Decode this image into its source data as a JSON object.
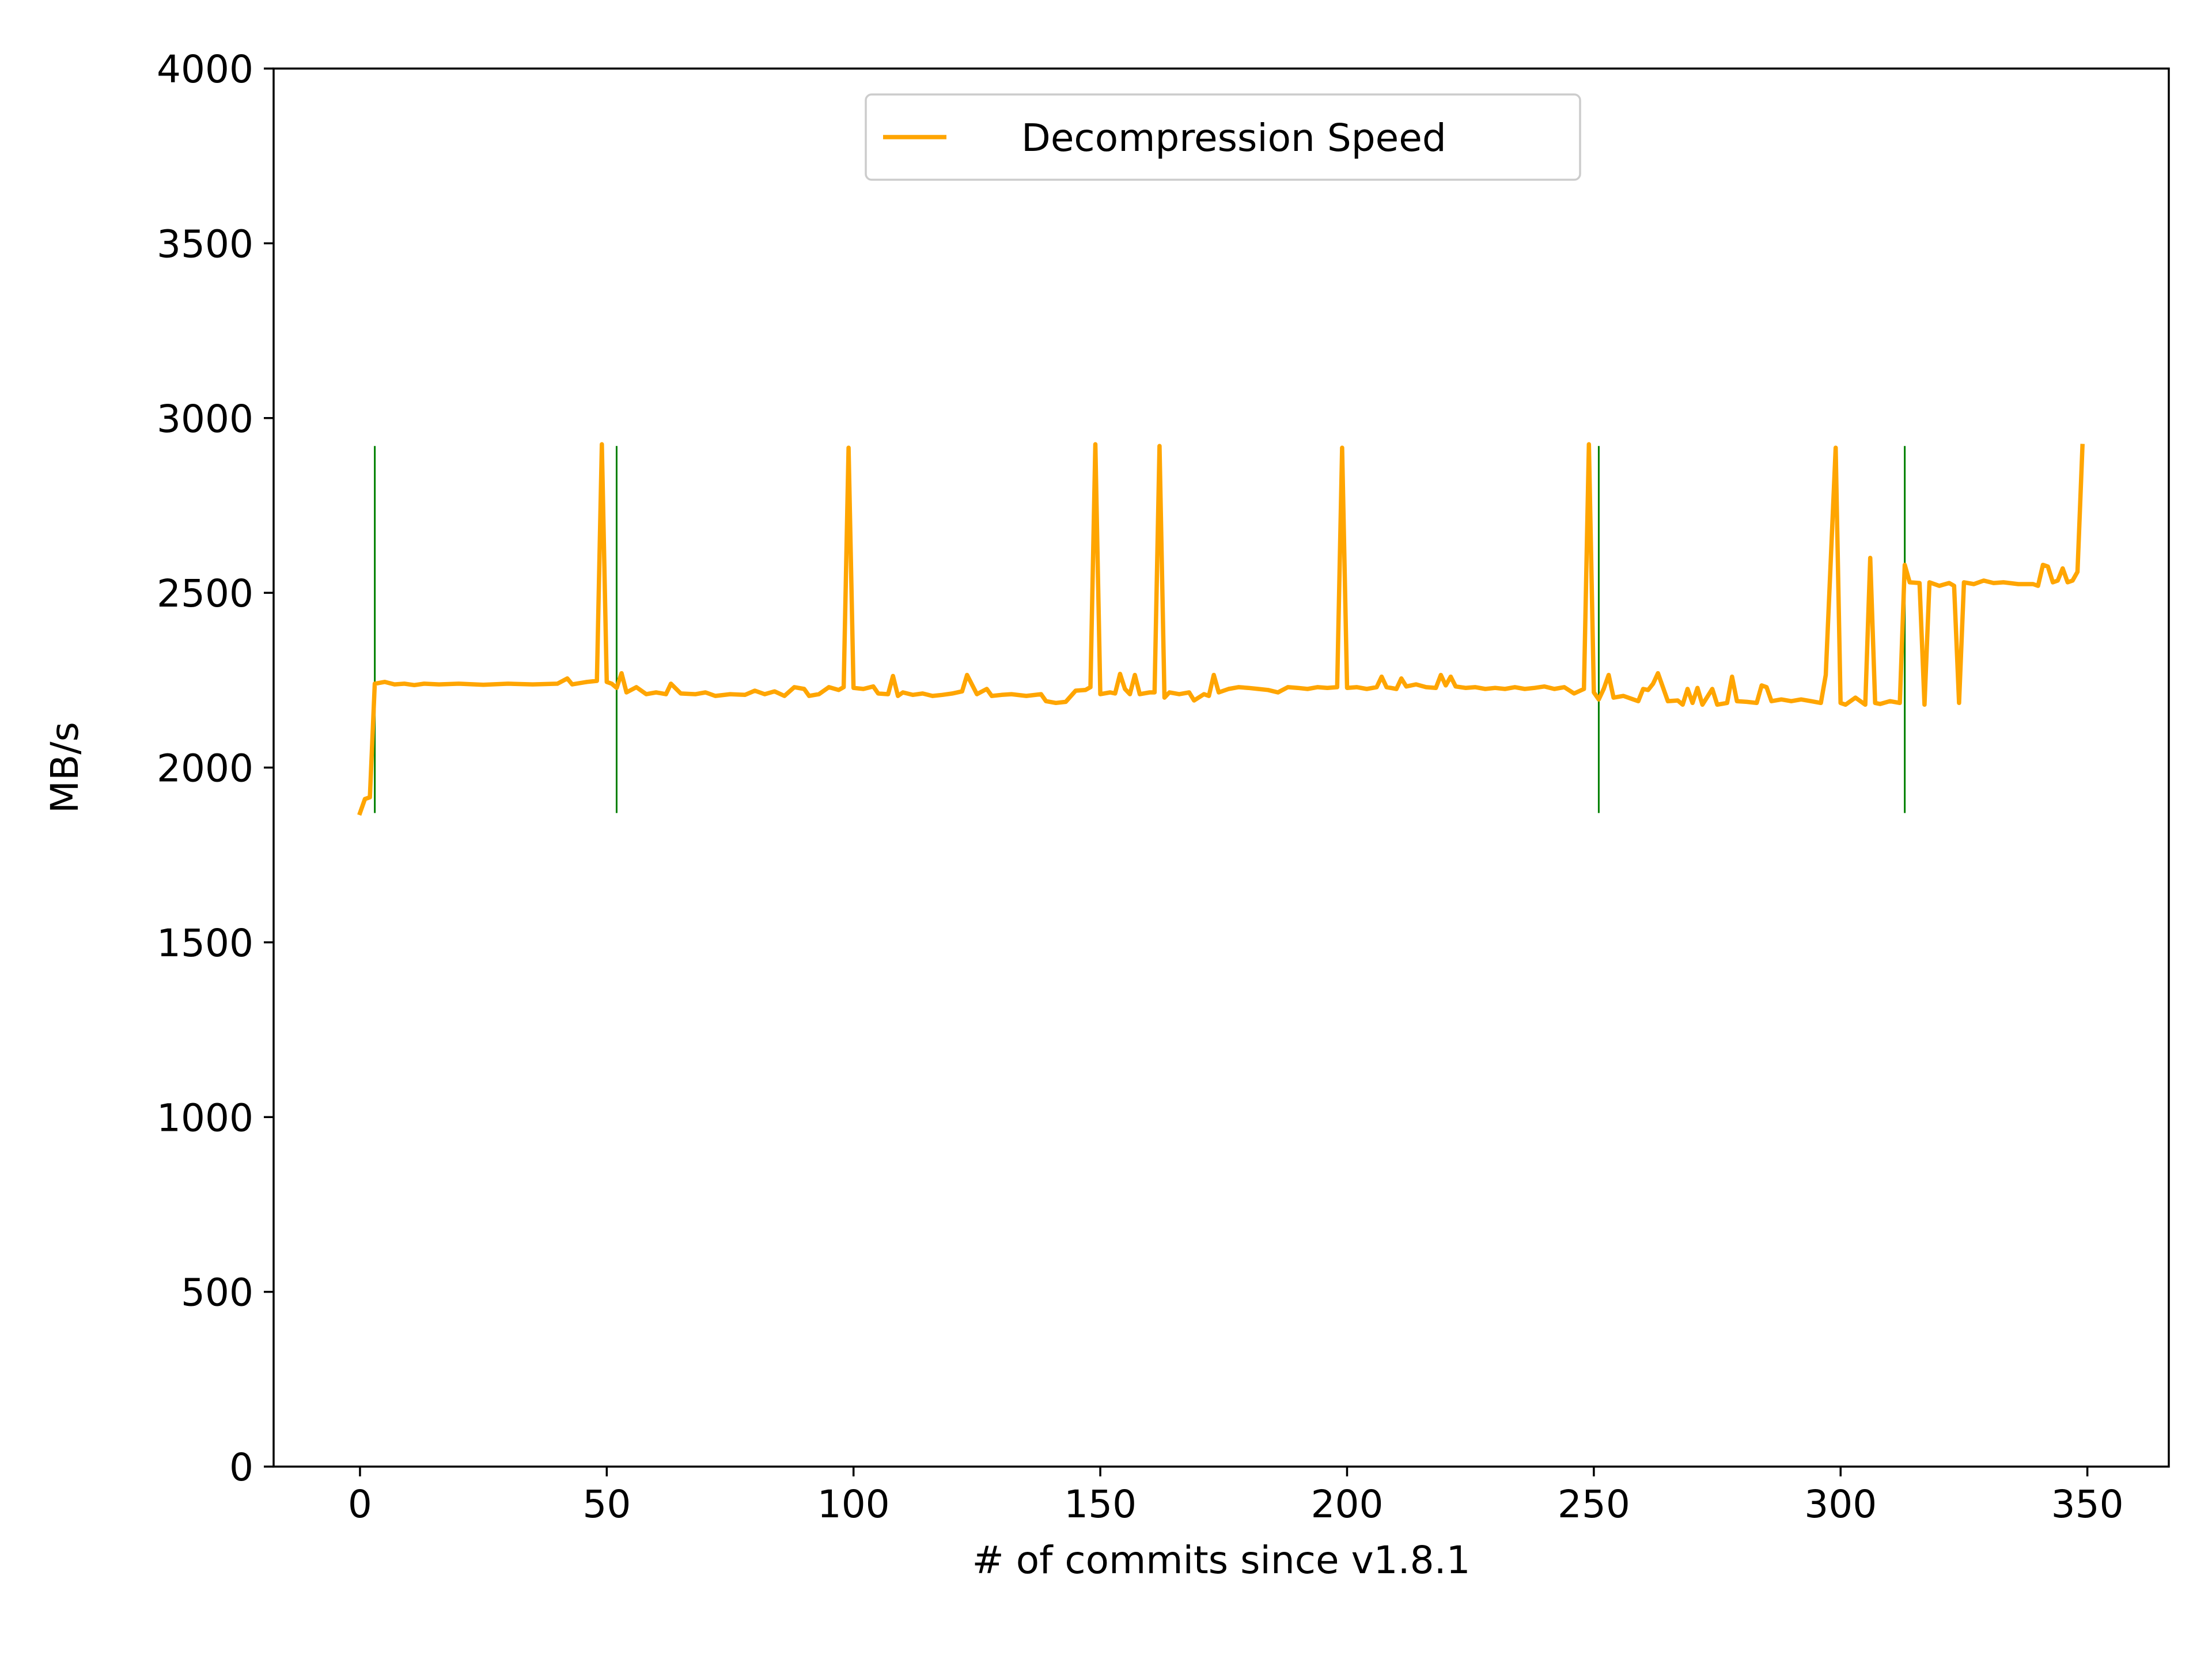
{
  "chart_data": {
    "type": "line",
    "title": "",
    "xlabel": "# of commits since v1.8.1",
    "ylabel": "MB/s",
    "xlim": [
      -17.5,
      366.5
    ],
    "ylim": [
      0,
      4000
    ],
    "xticks": [
      0,
      50,
      100,
      150,
      200,
      250,
      300,
      350
    ],
    "yticks": [
      0,
      500,
      1000,
      1500,
      2000,
      2500,
      3000,
      3500,
      4000
    ],
    "grid": false,
    "legend_position": "upper center",
    "series": [
      {
        "name": "Decompression Speed",
        "color": "#ffa500",
        "points": [
          [
            0,
            1870
          ],
          [
            1,
            1910
          ],
          [
            2,
            1915
          ],
          [
            3,
            2240
          ],
          [
            5,
            2245
          ],
          [
            7,
            2238
          ],
          [
            9,
            2240
          ],
          [
            11,
            2236
          ],
          [
            13,
            2240
          ],
          [
            16,
            2238
          ],
          [
            20,
            2240
          ],
          [
            25,
            2237
          ],
          [
            30,
            2240
          ],
          [
            35,
            2238
          ],
          [
            40,
            2240
          ],
          [
            42,
            2255
          ],
          [
            43,
            2238
          ],
          [
            46,
            2245
          ],
          [
            48,
            2248
          ],
          [
            49,
            2925
          ],
          [
            50,
            2245
          ],
          [
            51,
            2240
          ],
          [
            52,
            2228
          ],
          [
            53,
            2270
          ],
          [
            54,
            2215
          ],
          [
            56,
            2230
          ],
          [
            58,
            2210
          ],
          [
            60,
            2215
          ],
          [
            62,
            2210
          ],
          [
            63,
            2240
          ],
          [
            65,
            2212
          ],
          [
            68,
            2210
          ],
          [
            70,
            2215
          ],
          [
            72,
            2205
          ],
          [
            75,
            2210
          ],
          [
            78,
            2208
          ],
          [
            80,
            2220
          ],
          [
            82,
            2210
          ],
          [
            84,
            2218
          ],
          [
            86,
            2205
          ],
          [
            88,
            2230
          ],
          [
            90,
            2225
          ],
          [
            91,
            2205
          ],
          [
            93,
            2210
          ],
          [
            95,
            2230
          ],
          [
            97,
            2222
          ],
          [
            98,
            2230
          ],
          [
            99,
            2915
          ],
          [
            100,
            2228
          ],
          [
            102,
            2225
          ],
          [
            104,
            2232
          ],
          [
            105,
            2212
          ],
          [
            107,
            2210
          ],
          [
            108,
            2262
          ],
          [
            109,
            2205
          ],
          [
            110,
            2215
          ],
          [
            112,
            2208
          ],
          [
            114,
            2212
          ],
          [
            116,
            2205
          ],
          [
            118,
            2208
          ],
          [
            120,
            2212
          ],
          [
            122,
            2218
          ],
          [
            123,
            2265
          ],
          [
            125,
            2210
          ],
          [
            127,
            2225
          ],
          [
            128,
            2205
          ],
          [
            130,
            2208
          ],
          [
            132,
            2210
          ],
          [
            135,
            2205
          ],
          [
            138,
            2210
          ],
          [
            139,
            2190
          ],
          [
            141,
            2185
          ],
          [
            143,
            2188
          ],
          [
            145,
            2220
          ],
          [
            147,
            2222
          ],
          [
            148,
            2230
          ],
          [
            149,
            2925
          ],
          [
            150,
            2210
          ],
          [
            152,
            2215
          ],
          [
            153,
            2212
          ],
          [
            154,
            2268
          ],
          [
            155,
            2225
          ],
          [
            156,
            2210
          ],
          [
            157,
            2265
          ],
          [
            158,
            2210
          ],
          [
            160,
            2215
          ],
          [
            161,
            2215
          ],
          [
            162,
            2920
          ],
          [
            163,
            2200
          ],
          [
            164,
            2215
          ],
          [
            166,
            2210
          ],
          [
            168,
            2215
          ],
          [
            169,
            2192
          ],
          [
            171,
            2210
          ],
          [
            172,
            2205
          ],
          [
            173,
            2265
          ],
          [
            174,
            2215
          ],
          [
            176,
            2225
          ],
          [
            178,
            2230
          ],
          [
            180,
            2228
          ],
          [
            182,
            2225
          ],
          [
            184,
            2222
          ],
          [
            186,
            2215
          ],
          [
            188,
            2230
          ],
          [
            190,
            2228
          ],
          [
            192,
            2225
          ],
          [
            194,
            2230
          ],
          [
            196,
            2228
          ],
          [
            198,
            2230
          ],
          [
            199,
            2915
          ],
          [
            200,
            2228
          ],
          [
            202,
            2230
          ],
          [
            204,
            2225
          ],
          [
            206,
            2230
          ],
          [
            207,
            2260
          ],
          [
            208,
            2230
          ],
          [
            210,
            2225
          ],
          [
            211,
            2255
          ],
          [
            212,
            2232
          ],
          [
            214,
            2238
          ],
          [
            216,
            2230
          ],
          [
            218,
            2228
          ],
          [
            219,
            2265
          ],
          [
            220,
            2235
          ],
          [
            221,
            2260
          ],
          [
            222,
            2232
          ],
          [
            224,
            2228
          ],
          [
            226,
            2230
          ],
          [
            228,
            2225
          ],
          [
            230,
            2228
          ],
          [
            232,
            2225
          ],
          [
            234,
            2230
          ],
          [
            236,
            2225
          ],
          [
            238,
            2228
          ],
          [
            240,
            2232
          ],
          [
            242,
            2225
          ],
          [
            244,
            2230
          ],
          [
            246,
            2212
          ],
          [
            248,
            2225
          ],
          [
            249,
            2925
          ],
          [
            250,
            2215
          ],
          [
            251,
            2195
          ],
          [
            252,
            2225
          ],
          [
            253,
            2265
          ],
          [
            254,
            2200
          ],
          [
            256,
            2205
          ],
          [
            258,
            2195
          ],
          [
            259,
            2190
          ],
          [
            260,
            2225
          ],
          [
            261,
            2222
          ],
          [
            262,
            2240
          ],
          [
            263,
            2270
          ],
          [
            265,
            2190
          ],
          [
            267,
            2192
          ],
          [
            268,
            2180
          ],
          [
            269,
            2225
          ],
          [
            270,
            2185
          ],
          [
            271,
            2228
          ],
          [
            272,
            2180
          ],
          [
            274,
            2225
          ],
          [
            275,
            2180
          ],
          [
            277,
            2185
          ],
          [
            278,
            2260
          ],
          [
            279,
            2190
          ],
          [
            281,
            2188
          ],
          [
            283,
            2185
          ],
          [
            284,
            2235
          ],
          [
            285,
            2230
          ],
          [
            286,
            2190
          ],
          [
            288,
            2195
          ],
          [
            290,
            2190
          ],
          [
            292,
            2195
          ],
          [
            294,
            2190
          ],
          [
            296,
            2185
          ],
          [
            297,
            2265
          ],
          [
            299,
            2915
          ],
          [
            300,
            2185
          ],
          [
            301,
            2180
          ],
          [
            302,
            2190
          ],
          [
            303,
            2200
          ],
          [
            305,
            2180
          ],
          [
            306,
            2600
          ],
          [
            307,
            2185
          ],
          [
            308,
            2182
          ],
          [
            310,
            2190
          ],
          [
            312,
            2185
          ],
          [
            313,
            2580
          ],
          [
            314,
            2530
          ],
          [
            316,
            2528
          ],
          [
            317,
            2180
          ],
          [
            318,
            2530
          ],
          [
            320,
            2520
          ],
          [
            322,
            2528
          ],
          [
            323,
            2520
          ],
          [
            324,
            2185
          ],
          [
            325,
            2530
          ],
          [
            327,
            2525
          ],
          [
            329,
            2535
          ],
          [
            331,
            2528
          ],
          [
            333,
            2530
          ],
          [
            336,
            2525
          ],
          [
            339,
            2525
          ],
          [
            340,
            2520
          ],
          [
            341,
            2580
          ],
          [
            342,
            2575
          ],
          [
            343,
            2530
          ],
          [
            344,
            2535
          ],
          [
            345,
            2570
          ],
          [
            346,
            2530
          ],
          [
            347,
            2535
          ],
          [
            348,
            2560
          ],
          [
            349,
            2920
          ]
        ]
      }
    ],
    "markers": {
      "color": "#008000",
      "x": [
        3,
        52,
        251,
        313
      ],
      "y_range": [
        1870,
        2920
      ]
    }
  }
}
